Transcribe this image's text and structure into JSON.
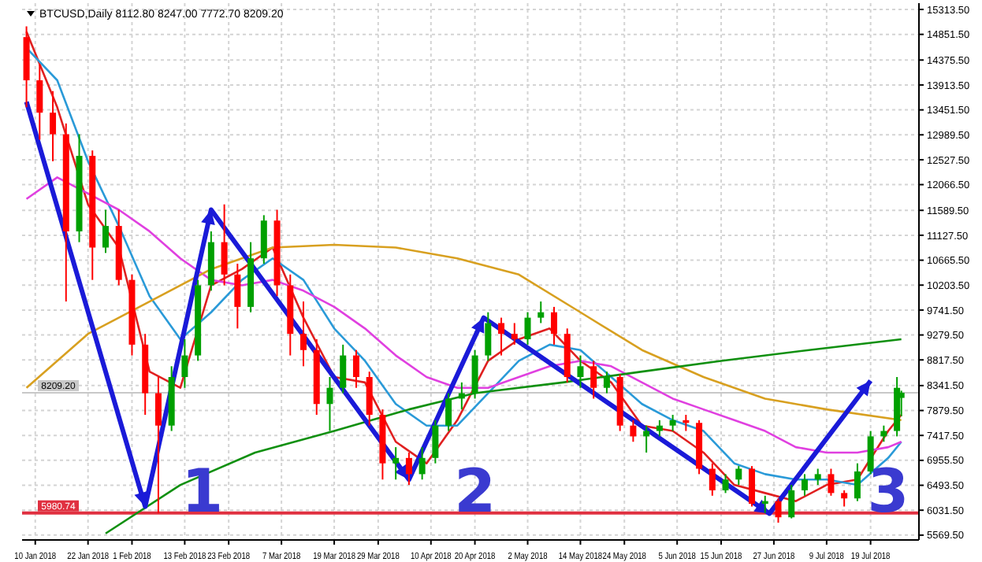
{
  "chart_data": {
    "type": "candlestick",
    "title": "BTCUSD,Daily 8112.80 8247.00 7772.70 8209.20",
    "xlim": [
      "2018-01-07",
      "2018-07-30"
    ],
    "ylim": [
      5480,
      15430
    ],
    "xticks": [
      {
        "value": "2018-01-10",
        "label": "10 Jan 2018"
      },
      {
        "value": "2018-01-22",
        "label": "22 Jan 2018"
      },
      {
        "value": "2018-02-01",
        "label": "1 Feb 2018"
      },
      {
        "value": "2018-02-13",
        "label": "13 Feb 2018"
      },
      {
        "value": "2018-02-23",
        "label": "23 Feb 2018"
      },
      {
        "value": "2018-03-07",
        "label": "7 Mar 2018"
      },
      {
        "value": "2018-03-19",
        "label": "19 Mar 2018"
      },
      {
        "value": "2018-03-29",
        "label": "29 Mar 2018"
      },
      {
        "value": "2018-04-10",
        "label": "10 Apr 2018"
      },
      {
        "value": "2018-04-20",
        "label": "20 Apr 2018"
      },
      {
        "value": "2018-05-02",
        "label": "2 May 2018"
      },
      {
        "value": "2018-05-14",
        "label": "14 May 2018"
      },
      {
        "value": "2018-05-24",
        "label": "24 May 2018"
      },
      {
        "value": "2018-06-05",
        "label": "5 Jun 2018"
      },
      {
        "value": "2018-06-15",
        "label": "15 Jun 2018"
      },
      {
        "value": "2018-06-27",
        "label": "27 Jun 2018"
      },
      {
        "value": "2018-07-09",
        "label": "9 Jul 2018"
      },
      {
        "value": "2018-07-19",
        "label": "19 Jul 2018"
      }
    ],
    "yticks": [
      {
        "value": 5569.5,
        "label": "5569.50"
      },
      {
        "value": 6031.5,
        "label": "6031.50"
      },
      {
        "value": 6493.5,
        "label": "6493.50"
      },
      {
        "value": 6955.5,
        "label": "6955.50"
      },
      {
        "value": 7417.5,
        "label": "7417.50"
      },
      {
        "value": 7879.5,
        "label": "7879.50"
      },
      {
        "value": 8341.5,
        "label": "8341.50"
      },
      {
        "value": 8817.5,
        "label": "8817.50"
      },
      {
        "value": 9279.5,
        "label": "9279.50"
      },
      {
        "value": 9741.5,
        "label": "9741.50"
      },
      {
        "value": 10203.5,
        "label": "10203.50"
      },
      {
        "value": 10665.5,
        "label": "10665.50"
      },
      {
        "value": 11127.5,
        "label": "11127.50"
      },
      {
        "value": 11589.5,
        "label": "11589.50"
      },
      {
        "value": 12066.5,
        "label": "12066.50"
      },
      {
        "value": 12527.5,
        "label": "12527.50"
      },
      {
        "value": 12989.5,
        "label": "12989.50"
      },
      {
        "value": 13451.5,
        "label": "13451.50"
      },
      {
        "value": 13913.5,
        "label": "13913.50"
      },
      {
        "value": 14375.5,
        "label": "14375.50"
      },
      {
        "value": 14851.5,
        "label": "14851.50"
      },
      {
        "value": 15313.5,
        "label": "15313.50"
      }
    ],
    "grid": true,
    "marker": "none",
    "series": [
      {
        "type": "candlestick",
        "x": [
          "2018-01-08",
          "2018-01-11",
          "2018-01-14",
          "2018-01-17",
          "2018-01-20",
          "2018-01-23",
          "2018-01-26",
          "2018-01-29",
          "2018-02-01",
          "2018-02-04",
          "2018-02-07",
          "2018-02-10",
          "2018-02-13",
          "2018-02-16",
          "2018-02-19",
          "2018-02-22",
          "2018-02-25",
          "2018-02-28",
          "2018-03-03",
          "2018-03-06",
          "2018-03-09",
          "2018-03-12",
          "2018-03-15",
          "2018-03-18",
          "2018-03-21",
          "2018-03-24",
          "2018-03-27",
          "2018-03-30",
          "2018-04-02",
          "2018-04-05",
          "2018-04-08",
          "2018-04-11",
          "2018-04-14",
          "2018-04-17",
          "2018-04-20",
          "2018-04-23",
          "2018-04-26",
          "2018-04-29",
          "2018-05-02",
          "2018-05-05",
          "2018-05-08",
          "2018-05-11",
          "2018-05-14",
          "2018-05-17",
          "2018-05-20",
          "2018-05-23",
          "2018-05-26",
          "2018-05-29",
          "2018-06-01",
          "2018-06-04",
          "2018-06-07",
          "2018-06-10",
          "2018-06-13",
          "2018-06-16",
          "2018-06-19",
          "2018-06-22",
          "2018-06-25",
          "2018-06-28",
          "2018-07-01",
          "2018-07-04",
          "2018-07-07",
          "2018-07-10",
          "2018-07-13",
          "2018-07-16",
          "2018-07-19",
          "2018-07-22",
          "2018-07-25",
          "2018-07-26"
        ],
        "ohlc": [
          [
            14800,
            15000,
            13500,
            14000
          ],
          [
            14000,
            14300,
            12900,
            13400
          ],
          [
            13400,
            13800,
            12500,
            13000
          ],
          [
            13000,
            13200,
            9900,
            11200
          ],
          [
            11200,
            13000,
            11000,
            12600
          ],
          [
            12600,
            12700,
            10300,
            10900
          ],
          [
            10900,
            11600,
            10800,
            11300
          ],
          [
            11300,
            11600,
            10200,
            10300
          ],
          [
            10300,
            10400,
            8900,
            9100
          ],
          [
            9100,
            9300,
            7800,
            8200
          ],
          [
            8200,
            8500,
            5980,
            7600
          ],
          [
            7600,
            8700,
            7500,
            8500
          ],
          [
            8500,
            9200,
            8300,
            8900
          ],
          [
            8900,
            10300,
            8800,
            10200
          ],
          [
            10200,
            11200,
            10100,
            11000
          ],
          [
            11000,
            11700,
            10200,
            10400
          ],
          [
            10400,
            10600,
            9400,
            9800
          ],
          [
            9800,
            11000,
            9700,
            10700
          ],
          [
            10700,
            11500,
            10600,
            11400
          ],
          [
            11400,
            11600,
            10000,
            10200
          ],
          [
            10200,
            10400,
            8900,
            9300
          ],
          [
            9300,
            9900,
            8700,
            9000
          ],
          [
            9000,
            9200,
            7800,
            8000
          ],
          [
            8000,
            8500,
            7500,
            8300
          ],
          [
            8300,
            9100,
            8200,
            8900
          ],
          [
            8900,
            9000,
            8300,
            8500
          ],
          [
            8500,
            8600,
            7600,
            7800
          ],
          [
            7800,
            7900,
            6600,
            6900
          ],
          [
            6900,
            7200,
            6600,
            7000
          ],
          [
            7000,
            7100,
            6500,
            6700
          ],
          [
            6700,
            7200,
            6600,
            7000
          ],
          [
            7000,
            7700,
            6900,
            7600
          ],
          [
            7600,
            8200,
            7500,
            8100
          ],
          [
            8100,
            8400,
            7900,
            8200
          ],
          [
            8200,
            9000,
            8100,
            8900
          ],
          [
            8900,
            9700,
            8800,
            9500
          ],
          [
            9500,
            9600,
            8900,
            9300
          ],
          [
            9300,
            9500,
            9100,
            9200
          ],
          [
            9200,
            9700,
            9100,
            9600
          ],
          [
            9600,
            9900,
            9500,
            9700
          ],
          [
            9700,
            9800,
            9100,
            9300
          ],
          [
            9300,
            9400,
            8400,
            8500
          ],
          [
            8500,
            8900,
            8300,
            8700
          ],
          [
            8700,
            8800,
            8100,
            8300
          ],
          [
            8300,
            8600,
            8200,
            8500
          ],
          [
            8500,
            8550,
            7500,
            7600
          ],
          [
            7600,
            7700,
            7300,
            7400
          ],
          [
            7400,
            7600,
            7100,
            7500
          ],
          [
            7500,
            7700,
            7400,
            7600
          ],
          [
            7600,
            7800,
            7500,
            7700
          ],
          [
            7700,
            7800,
            7500,
            7650
          ],
          [
            7650,
            7700,
            6700,
            6800
          ],
          [
            6800,
            6900,
            6300,
            6400
          ],
          [
            6400,
            6700,
            6350,
            6600
          ],
          [
            6600,
            6850,
            6500,
            6800
          ],
          [
            6800,
            6850,
            6100,
            6150
          ],
          [
            6150,
            6300,
            5980,
            6200
          ],
          [
            6200,
            6250,
            5800,
            5900
          ],
          [
            5900,
            6500,
            5880,
            6400
          ],
          [
            6400,
            6700,
            6300,
            6600
          ],
          [
            6600,
            6800,
            6500,
            6700
          ],
          [
            6700,
            6800,
            6300,
            6350
          ],
          [
            6350,
            6400,
            6100,
            6250
          ],
          [
            6250,
            6900,
            6200,
            6750
          ],
          [
            6750,
            7500,
            6700,
            7400
          ],
          [
            7400,
            7600,
            7300,
            7500
          ],
          [
            7500,
            8500,
            7400,
            8300
          ],
          [
            8112.8,
            8247,
            7772.7,
            8209.2
          ]
        ],
        "colors": [
          "#ff0000",
          "#ff0000",
          "#ff0000",
          "#ff0000",
          "#00a000",
          "#ff0000",
          "#00a000",
          "#ff0000",
          "#ff0000",
          "#ff0000",
          "#ff0000",
          "#00a000",
          "#00a000",
          "#00a000",
          "#00a000",
          "#ff0000",
          "#ff0000",
          "#00a000",
          "#00a000",
          "#ff0000",
          "#ff0000",
          "#ff0000",
          "#ff0000",
          "#00a000",
          "#00a000",
          "#ff0000",
          "#ff0000",
          "#ff0000",
          "#00a000",
          "#ff0000",
          "#00a000",
          "#00a000",
          "#00a000",
          "#00a000",
          "#00a000",
          "#00a000",
          "#ff0000",
          "#ff0000",
          "#00a000",
          "#00a000",
          "#ff0000",
          "#ff0000",
          "#00a000",
          "#ff0000",
          "#00a000",
          "#ff0000",
          "#ff0000",
          "#00a000",
          "#00a000",
          "#00a000",
          "#ff0000",
          "#ff0000",
          "#ff0000",
          "#00a000",
          "#00a000",
          "#ff0000",
          "#00a000",
          "#ff0000",
          "#00a000",
          "#00a000",
          "#00a000",
          "#ff0000",
          "#ff0000",
          "#00a000",
          "#00a000",
          "#00a000",
          "#00a000",
          "#00a000"
        ]
      },
      {
        "type": "line",
        "color": "#e02020",
        "x": [
          "2018-01-08",
          "2018-01-15",
          "2018-01-22",
          "2018-01-29",
          "2018-02-05",
          "2018-02-12",
          "2018-02-19",
          "2018-02-26",
          "2018-03-05",
          "2018-03-12",
          "2018-03-19",
          "2018-03-26",
          "2018-04-02",
          "2018-04-09",
          "2018-04-16",
          "2018-04-23",
          "2018-04-30",
          "2018-05-07",
          "2018-05-14",
          "2018-05-21",
          "2018-05-28",
          "2018-06-04",
          "2018-06-11",
          "2018-06-18",
          "2018-06-25",
          "2018-07-02",
          "2018-07-09",
          "2018-07-16",
          "2018-07-23",
          "2018-07-26"
        ],
        "values": [
          14900,
          13500,
          11700,
          10900,
          8600,
          8300,
          10200,
          10500,
          10900,
          9600,
          8500,
          8400,
          7300,
          6900,
          7700,
          8800,
          9200,
          9400,
          8800,
          8400,
          7600,
          7500,
          7100,
          6500,
          6350,
          6200,
          6500,
          6600,
          7500,
          7800
        ]
      },
      {
        "type": "line",
        "color": "#2a9ad8",
        "x": [
          "2018-01-08",
          "2018-01-15",
          "2018-01-22",
          "2018-01-29",
          "2018-02-05",
          "2018-02-12",
          "2018-02-19",
          "2018-02-26",
          "2018-03-05",
          "2018-03-12",
          "2018-03-19",
          "2018-03-26",
          "2018-04-02",
          "2018-04-09",
          "2018-04-16",
          "2018-04-23",
          "2018-04-30",
          "2018-05-07",
          "2018-05-14",
          "2018-05-21",
          "2018-05-28",
          "2018-06-04",
          "2018-06-11",
          "2018-06-18",
          "2018-06-25",
          "2018-07-02",
          "2018-07-09",
          "2018-07-16",
          "2018-07-23",
          "2018-07-26"
        ],
        "values": [
          14600,
          14000,
          12500,
          11300,
          10000,
          9200,
          9700,
          10300,
          10700,
          10300,
          9400,
          8800,
          8000,
          7600,
          7600,
          8200,
          8800,
          9100,
          9000,
          8500,
          8000,
          7700,
          7500,
          6900,
          6700,
          6600,
          6600,
          6500,
          7000,
          7300
        ]
      },
      {
        "type": "line",
        "color": "#e040e0",
        "x": [
          "2018-01-08",
          "2018-01-15",
          "2018-01-22",
          "2018-01-29",
          "2018-02-05",
          "2018-02-12",
          "2018-02-19",
          "2018-02-26",
          "2018-03-05",
          "2018-03-12",
          "2018-03-19",
          "2018-03-26",
          "2018-04-02",
          "2018-04-09",
          "2018-04-16",
          "2018-04-23",
          "2018-04-30",
          "2018-05-07",
          "2018-05-14",
          "2018-05-21",
          "2018-05-28",
          "2018-06-04",
          "2018-06-11",
          "2018-06-18",
          "2018-06-25",
          "2018-07-02",
          "2018-07-09",
          "2018-07-16",
          "2018-07-23",
          "2018-07-26"
        ],
        "values": [
          11800,
          12200,
          11900,
          11600,
          11200,
          10700,
          10300,
          10200,
          10300,
          10100,
          9800,
          9400,
          8900,
          8500,
          8300,
          8300,
          8500,
          8700,
          8800,
          8700,
          8400,
          8100,
          7900,
          7700,
          7500,
          7200,
          7100,
          7100,
          7200,
          7300
        ]
      },
      {
        "type": "line",
        "color": "#d8a020",
        "x": [
          "2018-01-08",
          "2018-01-22",
          "2018-02-05",
          "2018-02-19",
          "2018-03-05",
          "2018-03-19",
          "2018-04-02",
          "2018-04-16",
          "2018-04-30",
          "2018-05-14",
          "2018-05-28",
          "2018-06-11",
          "2018-06-25",
          "2018-07-09",
          "2018-07-26"
        ],
        "values": [
          8300,
          9300,
          9900,
          10500,
          10900,
          10950,
          10900,
          10700,
          10400,
          9700,
          9000,
          8500,
          8100,
          7900,
          7700
        ]
      },
      {
        "type": "line",
        "color": "#109010",
        "x": [
          "2018-01-26",
          "2018-02-12",
          "2018-03-01",
          "2018-03-19",
          "2018-04-05",
          "2018-04-20",
          "2018-05-10",
          "2018-05-28",
          "2018-06-15",
          "2018-07-05",
          "2018-07-26"
        ],
        "values": [
          5600,
          6500,
          7100,
          7500,
          7900,
          8200,
          8400,
          8600,
          8800,
          9000,
          9200
        ]
      },
      {
        "type": "line",
        "color": "#1a1ad8",
        "x": [
          "2018-01-08",
          "2018-02-04",
          "2018-02-19",
          "2018-04-05",
          "2018-04-22",
          "2018-06-26",
          "2018-07-19"
        ],
        "values": [
          13600,
          6100,
          11600,
          6600,
          9600,
          5970,
          8430
        ]
      }
    ],
    "ref_lines": [
      {
        "axis": "y",
        "value": 5980.74,
        "label": "5980.74",
        "color": "#e03040"
      },
      {
        "axis": "y",
        "value": 8209.2,
        "label": "8209.20",
        "color": "#c8c8c8"
      }
    ],
    "annotations": [
      {
        "text": "1",
        "x": "2018-02-17",
        "y": 6000
      },
      {
        "text": "2",
        "x": "2018-04-20",
        "y": 6000
      },
      {
        "text": "3",
        "x": "2018-07-23",
        "y": 6000
      }
    ]
  }
}
